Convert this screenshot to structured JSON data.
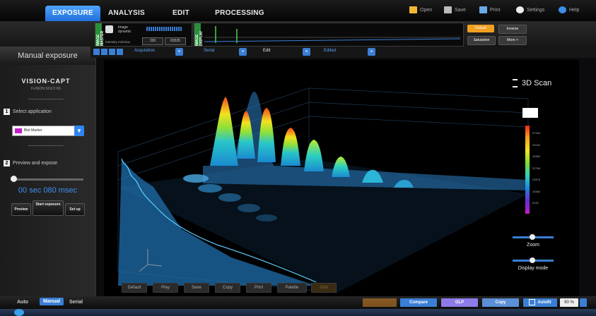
{
  "nav": {
    "tabs": [
      "EXPOSURE",
      "ANALYSIS",
      "EDIT",
      "PROCESSING"
    ],
    "active_tab": "EXPOSURE",
    "links": [
      "Open",
      "Save",
      "Print",
      "Settings",
      "Help"
    ]
  },
  "toolbar": {
    "image_master_label": "IMAGE MASTER",
    "image_display_label": "IMAGE DISPLAY",
    "image_dynamic_label": "Image dynamic",
    "intensity_label": "Intensity min/max",
    "intensity_min": "330",
    "intensity_max": "65535",
    "default_label": "Default",
    "inverse_label": "Inverse",
    "saturation_label": "Saturation",
    "more_label": "More >"
  },
  "sidebar": {
    "title": "Manual exposure",
    "brand": "VISION-CAPT",
    "brand_sub": "FUSION SOLO 6S",
    "step1_num": "1",
    "step1_label": "Select application",
    "application_value": "Blot Marker",
    "step2_num": "2",
    "step2_label": "Preview and expose",
    "exposure_time": "00 sec 080 msec",
    "preview_label": "Preview",
    "start_label": "Start exposure",
    "setup_label": "Set up"
  },
  "viewtabs": {
    "tabs": [
      "Acquisition",
      "Serial",
      "Edit",
      "Edited"
    ]
  },
  "viewer": {
    "title": "3D Scan",
    "colorbar_ticks": [
      "57344",
      "49152",
      "40960",
      "32768",
      "24576",
      "16384",
      "8192"
    ],
    "zoom_label": "Zoom",
    "display_mode_label": "Display mode",
    "buttons": [
      "Default",
      "Play",
      "Save",
      "Copy",
      "Print",
      "Palette",
      "Grid"
    ]
  },
  "bottom": {
    "modes": [
      "Auto",
      "Manual",
      "Serial"
    ],
    "active_mode": "Manual",
    "compare_label": "Compare",
    "glp_label": "GLP",
    "copy_label": "Copy",
    "autofit_label": "Autofit",
    "zoom_value": "90 %"
  },
  "colors": {
    "accent_blue": "#2f86f0",
    "orange": "#f0a020",
    "purple": "#8e7bea",
    "magenta": "#c21dc8"
  }
}
